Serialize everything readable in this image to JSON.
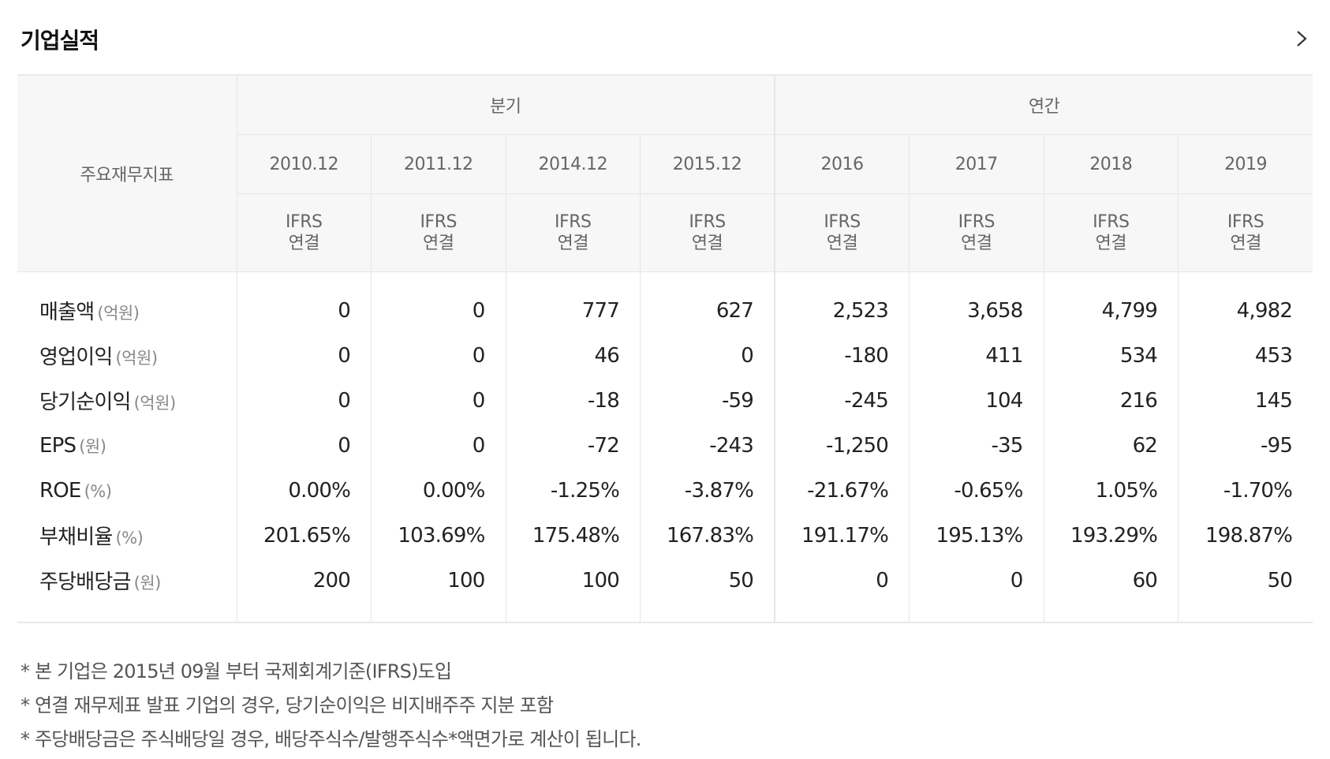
{
  "header": {
    "title": "기업실적",
    "more_icon": "chevron-right-icon"
  },
  "table": {
    "label_header": "주요재무지표",
    "groups": [
      {
        "label": "분기"
      },
      {
        "label": "연간"
      }
    ],
    "periods": [
      "2010.12",
      "2011.12",
      "2014.12",
      "2015.12",
      "2016",
      "2017",
      "2018",
      "2019"
    ],
    "basis": [
      {
        "line1": "IFRS",
        "line2": "연결"
      },
      {
        "line1": "IFRS",
        "line2": "연결"
      },
      {
        "line1": "IFRS",
        "line2": "연결"
      },
      {
        "line1": "IFRS",
        "line2": "연결"
      },
      {
        "line1": "IFRS",
        "line2": "연결"
      },
      {
        "line1": "IFRS",
        "line2": "연결"
      },
      {
        "line1": "IFRS",
        "line2": "연결"
      },
      {
        "line1": "IFRS",
        "line2": "연결"
      }
    ],
    "rows": [
      {
        "label": "매출액",
        "unit": "(억원)",
        "values": [
          "0",
          "0",
          "777",
          "627",
          "2,523",
          "3,658",
          "4,799",
          "4,982"
        ]
      },
      {
        "label": "영업이익",
        "unit": "(억원)",
        "values": [
          "0",
          "0",
          "46",
          "0",
          "-180",
          "411",
          "534",
          "453"
        ]
      },
      {
        "label": "당기순이익",
        "unit": "(억원)",
        "values": [
          "0",
          "0",
          "-18",
          "-59",
          "-245",
          "104",
          "216",
          "145"
        ]
      },
      {
        "label": "EPS",
        "unit": "(원)",
        "values": [
          "0",
          "0",
          "-72",
          "-243",
          "-1,250",
          "-35",
          "62",
          "-95"
        ]
      },
      {
        "label": "ROE",
        "unit": "(%)",
        "values": [
          "0.00%",
          "0.00%",
          "-1.25%",
          "-3.87%",
          "-21.67%",
          "-0.65%",
          "1.05%",
          "-1.70%"
        ]
      },
      {
        "label": "부채비율",
        "unit": "(%)",
        "values": [
          "201.65%",
          "103.69%",
          "175.48%",
          "167.83%",
          "191.17%",
          "195.13%",
          "193.29%",
          "198.87%"
        ]
      },
      {
        "label": "주당배당금",
        "unit": "(원)",
        "values": [
          "200",
          "100",
          "100",
          "50",
          "0",
          "0",
          "60",
          "50"
        ]
      }
    ]
  },
  "notes": [
    "* 본 기업은 2015년 09월 부터 국제회계기준(IFRS)도입",
    "* 연결 재무제표 발표 기업의 경우, 당기순이익은 비지배주주 지분 포함",
    "* 주당배당금은 주식배당일 경우, 배당주식수/발행주식수*액면가로 계산이 됩니다."
  ]
}
